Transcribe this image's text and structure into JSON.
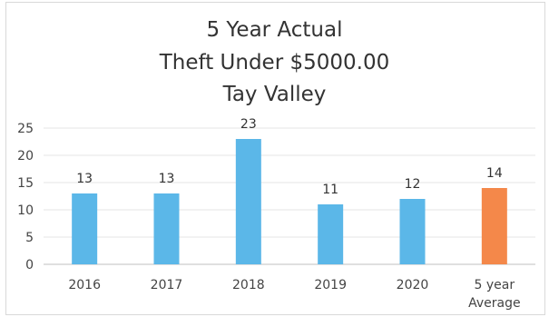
{
  "chart_data": {
    "type": "bar",
    "title_lines": [
      "5 Year Actual",
      "Theft Under $5000.00",
      "Tay Valley"
    ],
    "categories": [
      "2016",
      "2017",
      "2018",
      "2019",
      "2020",
      "5 year Average"
    ],
    "category_label_lines": [
      [
        "2016"
      ],
      [
        "2017"
      ],
      [
        "2018"
      ],
      [
        "2019"
      ],
      [
        "2020"
      ],
      [
        "5 year",
        "Average"
      ]
    ],
    "values": [
      13,
      13,
      23,
      11,
      12,
      14
    ],
    "data_labels": [
      "13",
      "13",
      "23",
      "11",
      "12",
      "14"
    ],
    "bar_colors": [
      "#5bb7e8",
      "#5bb7e8",
      "#5bb7e8",
      "#5bb7e8",
      "#5bb7e8",
      "#f4884a"
    ],
    "ylim": [
      0,
      25
    ],
    "yticks": [
      0,
      5,
      10,
      15,
      20,
      25
    ],
    "grid": true,
    "legend": "none"
  }
}
